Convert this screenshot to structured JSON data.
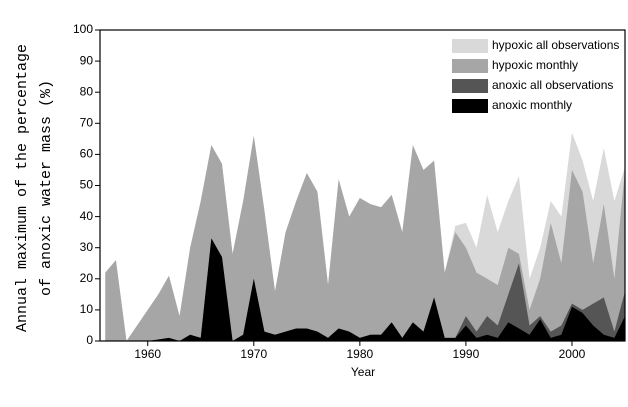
{
  "chart_data": {
    "type": "area",
    "ylabel": [
      "Annual maximum of the percentage",
      "of anoxic water mass (%)"
    ],
    "xlabel": "Year",
    "x": [
      1956,
      1957,
      1958,
      1959,
      1960,
      1961,
      1962,
      1963,
      1964,
      1965,
      1966,
      1967,
      1968,
      1969,
      1970,
      1971,
      1972,
      1973,
      1974,
      1975,
      1976,
      1977,
      1978,
      1979,
      1980,
      1981,
      1982,
      1983,
      1984,
      1985,
      1986,
      1987,
      1988,
      1989,
      1990,
      1991,
      1992,
      1993,
      1994,
      1995,
      1996,
      1997,
      1998,
      1999,
      2000,
      2001,
      2002,
      2003,
      2004,
      2005
    ],
    "series": [
      {
        "name": "hypoxic all observations",
        "color": "#d9d9d9",
        "values": [
          22,
          26,
          0,
          5,
          10,
          15,
          21,
          8,
          30,
          45,
          63,
          57,
          28,
          45,
          66,
          42,
          16,
          35,
          45,
          54,
          48,
          18,
          52,
          40,
          46,
          44,
          43,
          47,
          35,
          63,
          55,
          58,
          22,
          37,
          38,
          30,
          47,
          35,
          45,
          53,
          20,
          30,
          45,
          40,
          67,
          58,
          45,
          62,
          45,
          56
        ]
      },
      {
        "name": "hypoxic monthly",
        "color": "#a6a6a6",
        "values": [
          22,
          26,
          0,
          5,
          10,
          15,
          21,
          8,
          30,
          45,
          63,
          57,
          28,
          45,
          66,
          42,
          16,
          35,
          45,
          54,
          48,
          18,
          52,
          40,
          46,
          44,
          43,
          47,
          35,
          63,
          55,
          58,
          22,
          35,
          30,
          22,
          20,
          18,
          30,
          28,
          10,
          20,
          38,
          25,
          55,
          48,
          25,
          44,
          20,
          55
        ]
      },
      {
        "name": "anoxic all observations",
        "color": "#555555",
        "values": [
          0,
          0,
          0,
          0,
          0,
          0.5,
          1,
          0,
          2,
          1,
          33,
          27,
          0,
          2,
          20,
          3,
          2,
          3,
          4,
          4,
          3,
          1,
          4,
          3,
          1,
          2,
          2,
          6,
          1,
          6,
          3,
          14,
          1,
          1,
          8,
          3,
          8,
          5,
          15,
          25,
          5,
          8,
          3,
          5,
          12,
          10,
          12,
          14,
          3,
          16
        ]
      },
      {
        "name": "anoxic monthly",
        "color": "#000000",
        "values": [
          0,
          0,
          0,
          0,
          0,
          0.5,
          1,
          0,
          2,
          1,
          33,
          27,
          0,
          2,
          20,
          3,
          2,
          3,
          4,
          4,
          3,
          1,
          4,
          3,
          1,
          2,
          2,
          6,
          1,
          6,
          3,
          14,
          1,
          1,
          5,
          1,
          2,
          1,
          6,
          4,
          2,
          7,
          1,
          2,
          11,
          9,
          5,
          2,
          1,
          8
        ]
      }
    ],
    "xlim": [
      1955.5,
      2005
    ],
    "ylim": [
      0,
      100
    ],
    "xticks": [
      1960,
      1970,
      1980,
      1990,
      2000
    ],
    "yticks": [
      0,
      10,
      20,
      30,
      40,
      50,
      60,
      70,
      80,
      90,
      100
    ],
    "legend": "upper right"
  }
}
